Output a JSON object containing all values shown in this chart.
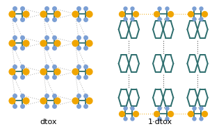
{
  "background_color": "#ffffff",
  "label_left": "dtox",
  "label_right": "1·dtox",
  "label_fontsize": 8,
  "sulfur_color": "#f0a500",
  "nitrogen_color": "#7b9fd4",
  "bond_color": "#2e6e6e",
  "hbond_gray": "#aaaaaa",
  "hbond_black": "#333333",
  "hbond_orange": "#f0a500",
  "S_size": 60,
  "N_size": 28,
  "bond_lw": 1.3,
  "hbond_lw": 0.7
}
